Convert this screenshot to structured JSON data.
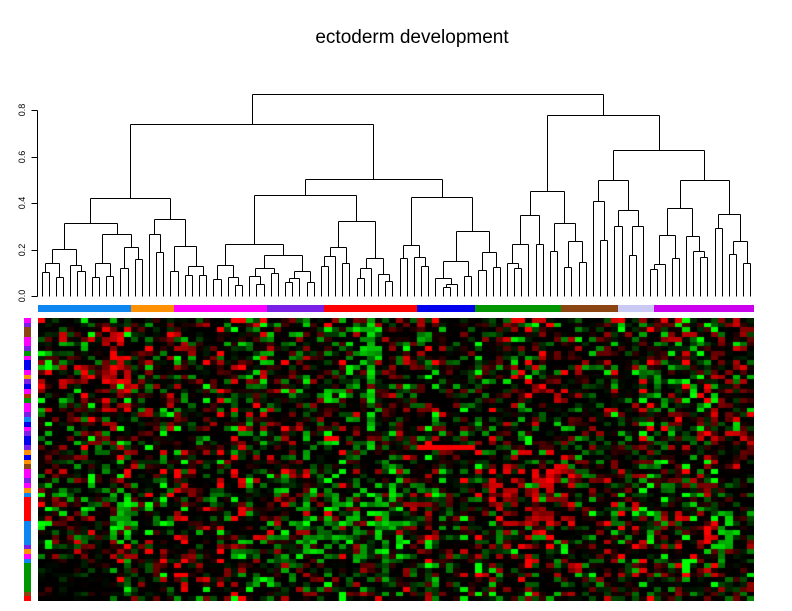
{
  "title": "ectoderm development",
  "chart_data": {
    "type": "heatmap",
    "title": "ectoderm development",
    "subtitle": "",
    "legend": "none",
    "dendrogram": {
      "orientation": "top",
      "axis_range": [
        0,
        0.8
      ],
      "axis_ticks": [
        "0.0",
        "0.2",
        "0.4",
        "0.6",
        "0.8"
      ],
      "n_leaves": 100,
      "root_height": 0.87,
      "root_split": [
        65,
        35
      ],
      "level2_heights": [
        0.74,
        0.78
      ],
      "seed": 1337
    },
    "col_groups": [
      {
        "color": "#0E86F2",
        "count": 13
      },
      {
        "color": "#FF9100",
        "count": 6
      },
      {
        "color": "#FF00FF",
        "count": 13
      },
      {
        "color": "#7A1FE6",
        "count": 8
      },
      {
        "color": "#FF0000",
        "count": 13
      },
      {
        "color": "#0000EE",
        "count": 8
      },
      {
        "color": "#009600",
        "count": 12
      },
      {
        "color": "#8B4513",
        "count": 8
      },
      {
        "color": "#C9C9F3",
        "count": 5
      },
      {
        "color": "#CC00EE",
        "count": 14
      }
    ],
    "row_colors": [
      "#FF00FF",
      "#7A1FE6",
      "#8B4513",
      "#8B4513",
      "#FF00FF",
      "#FF00FF",
      "#7A1FE6",
      "#009600",
      "#FF00FF",
      "#0000EE",
      "#0000EE",
      "#FF00FF",
      "#FF9100",
      "#7A1FE6",
      "#0000EE",
      "#FF00FF",
      "#B03000",
      "#009600",
      "#FF00FF",
      "#FF00FF",
      "#7A1FE6",
      "#0E86F2",
      "#0000EE",
      "#FF00FF",
      "#7A1FE6",
      "#0000EE",
      "#0000EE",
      "#7A1FE6",
      "#FF9100",
      "#0000EE",
      "#FF9100",
      "#8B4513",
      "#FF00FF",
      "#FF00FF",
      "#7A1FE6",
      "#FF00FF",
      "#FF9100",
      "#0E86F2",
      "#FF0000",
      "#FF0000",
      "#FF0000",
      "#FF0000",
      "#FF0000",
      "#0E86F2",
      "#0E86F2",
      "#0E86F2",
      "#0E86F2",
      "#0E86F2",
      "#7A1FE6",
      "#FF9100",
      "#FF00FF",
      "#0E86F2",
      "#009600",
      "#009600",
      "#009600",
      "#009600",
      "#009600",
      "#009600",
      "#8B4513",
      "#FF0000"
    ],
    "heatmap": {
      "n_rows": 60,
      "n_cols": 100,
      "low_color": "#FF0000",
      "mid_color": "#000000",
      "high_color": "#00FF00",
      "seed": 90125,
      "features": [
        {
          "rows": [
            2,
            19
          ],
          "cols": [
            9,
            12
          ],
          "mode": "red",
          "p": 0.5,
          "min": 0.45,
          "max": 1
        },
        {
          "rows": [
            36,
            48
          ],
          "cols": [
            10,
            12
          ],
          "mode": "green",
          "p": 0.6,
          "min": 0.5,
          "max": 1
        },
        {
          "rows": [
            0,
            27
          ],
          "cols": [
            46,
            46
          ],
          "mode": "green",
          "p": 0.55,
          "min": 0.5,
          "max": 1
        },
        {
          "rows": [
            1,
            16
          ],
          "cols": [
            42,
            47
          ],
          "mode": "green",
          "p": 0.3,
          "min": 0.4,
          "max": 1
        },
        {
          "rows": [
            27,
            27
          ],
          "cols": [
            53,
            60
          ],
          "mode": "red",
          "p": 1,
          "min": 0.95,
          "max": 1
        },
        {
          "rows": [
            31,
            43
          ],
          "cols": [
            63,
            74
          ],
          "mode": "red",
          "p": 0.45,
          "min": 0.35,
          "max": 1
        },
        {
          "rows": [
            36,
            50
          ],
          "cols": [
            36,
            50
          ],
          "mode": "green",
          "p": 0.3,
          "min": 0.4,
          "max": 1
        },
        {
          "rows": [
            41,
            49
          ],
          "cols": [
            95,
            96
          ],
          "mode": "green",
          "p": 0.6,
          "min": 0.5,
          "max": 1
        },
        {
          "rows": [
            2,
            26
          ],
          "cols": [
            94,
            98
          ],
          "mode": "red",
          "p": 0.25,
          "min": 0.3,
          "max": 0.9
        },
        {
          "rows": [
            51,
            59
          ],
          "cols": [
            0,
            9
          ],
          "mode": "dim",
          "p": 1,
          "factor": 0.25
        }
      ]
    }
  }
}
